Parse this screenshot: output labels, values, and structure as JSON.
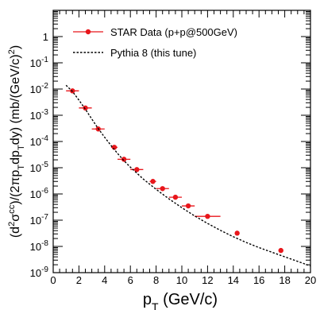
{
  "chart_data": {
    "type": "scatter",
    "xlabel": "p",
    "xlabel_sub": "T",
    "xlabel_unit": " (GeV/c)",
    "ylabel_parts": [
      {
        "t": "(d",
        "s": "n"
      },
      {
        "t": "2",
        "s": "sup"
      },
      {
        "t": "σ",
        "s": "n"
      },
      {
        "t": "cc",
        "s": "sup"
      },
      {
        "t": ")/(2πp",
        "s": "n"
      },
      {
        "t": "T",
        "s": "sub"
      },
      {
        "t": "dp",
        "s": "n"
      },
      {
        "t": "T",
        "s": "sub"
      },
      {
        "t": "dy)  (mb/(GeV/c)",
        "s": "n"
      },
      {
        "t": "2",
        "s": "sup"
      },
      {
        "t": ")",
        "s": "n"
      }
    ],
    "xlim": [
      0,
      20
    ],
    "ylim": [
      1e-09,
      10
    ],
    "ylog": true,
    "grid": false,
    "legend_position": "top-right",
    "x_ticks": [
      "0",
      "2",
      "4",
      "6",
      "8",
      "10",
      "12",
      "14",
      "16",
      "18",
      "20"
    ],
    "y_ticks": [
      {
        "base": "1",
        "exp": ""
      },
      {
        "base": "10",
        "exp": "-1"
      },
      {
        "base": "10",
        "exp": "-2"
      },
      {
        "base": "10",
        "exp": "-3"
      },
      {
        "base": "10",
        "exp": "-4"
      },
      {
        "base": "10",
        "exp": "-5"
      },
      {
        "base": "10",
        "exp": "-6"
      },
      {
        "base": "10",
        "exp": "-7"
      },
      {
        "base": "10",
        "exp": "-8"
      },
      {
        "base": "10",
        "exp": "-9"
      }
    ],
    "series": [
      {
        "name": "STAR Data (p+p@500GeV)",
        "type": "scatter",
        "color": "#e8161b",
        "x": [
          1.5,
          2.5,
          3.5,
          4.75,
          5.5,
          6.5,
          7.75,
          8.5,
          9.5,
          10.5,
          12.0,
          14.3,
          17.7
        ],
        "y": [
          0.0085,
          0.0019,
          0.0003,
          6e-05,
          2.1e-05,
          8.5e-06,
          3e-06,
          1.6e-06,
          7.5e-07,
          3.5e-07,
          1.4e-07,
          3.2e-08,
          7e-09
        ],
        "xerr": [
          0.5,
          0.5,
          0.5,
          0.25,
          0.5,
          0.5,
          0.25,
          0.5,
          0.5,
          0.5,
          1.0,
          0,
          0
        ]
      },
      {
        "name": "Pythia 8 (this tune)",
        "type": "line",
        "style": "dotted",
        "color": "#000000",
        "x": [
          1.0,
          1.5,
          2.0,
          2.5,
          3.0,
          3.5,
          4.0,
          4.5,
          5.0,
          5.5,
          6.0,
          7.0,
          8.0,
          9.0,
          10.0,
          11.0,
          12.0,
          13.0,
          14.0,
          15.0,
          16.0,
          17.0,
          18.0,
          19.0,
          20.0
        ],
        "y": [
          0.014,
          0.008,
          0.0038,
          0.0017,
          0.00072,
          0.00031,
          0.000145,
          7e-05,
          3.5e-05,
          1.85e-05,
          1.05e-05,
          3.7e-06,
          1.5e-06,
          6.5e-07,
          3e-07,
          1.45e-07,
          7.5e-08,
          4.1e-08,
          2.35e-08,
          1.42e-08,
          9e-09,
          6e-09,
          4e-09,
          2.7e-09,
          1.8e-09
        ]
      }
    ]
  }
}
